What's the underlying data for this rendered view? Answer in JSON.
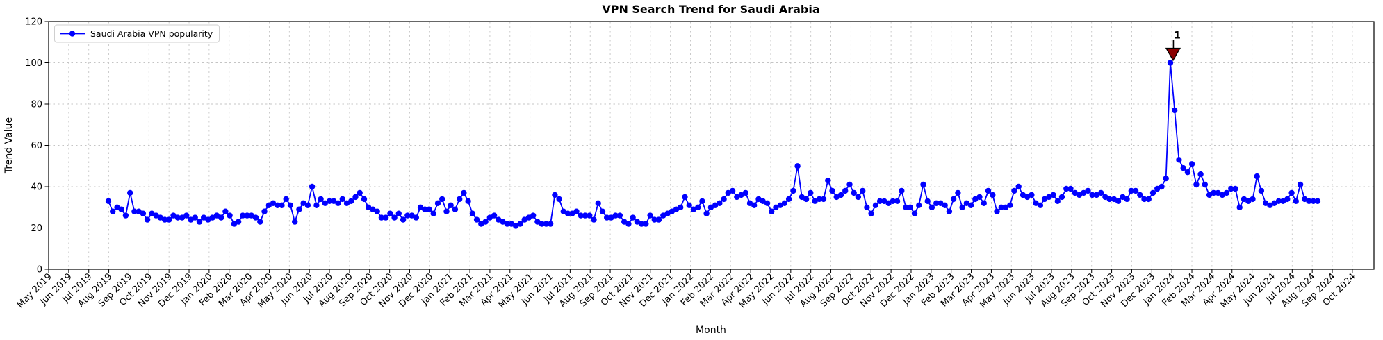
{
  "chart_data": {
    "type": "line",
    "title": "VPN Search Trend for Saudi Arabia",
    "xlabel": "Month",
    "ylabel": "Trend Value",
    "ylim": [
      0,
      120
    ],
    "yticks": [
      0,
      20,
      40,
      60,
      80,
      100,
      120
    ],
    "grid": true,
    "grid_style": "dashed-light-gray",
    "legend": {
      "position": "upper left",
      "entries": [
        "Saudi Arabia VPN popularity"
      ]
    },
    "x_tick_labels": [
      "May 2019",
      "Jun 2019",
      "Jul 2019",
      "Aug 2019",
      "Sep 2019",
      "Oct 2019",
      "Nov 2019",
      "Dec 2019",
      "Jan 2020",
      "Feb 2020",
      "Mar 2020",
      "Apr 2020",
      "May 2020",
      "Jun 2020",
      "Jul 2020",
      "Aug 2020",
      "Sep 2020",
      "Oct 2020",
      "Nov 2020",
      "Dec 2020",
      "Jan 2021",
      "Feb 2021",
      "Mar 2021",
      "Apr 2021",
      "May 2021",
      "Jun 2021",
      "Jul 2021",
      "Aug 2021",
      "Sep 2021",
      "Oct 2021",
      "Nov 2021",
      "Dec 2021",
      "Jan 2022",
      "Feb 2022",
      "Mar 2022",
      "Apr 2022",
      "May 2022",
      "Jun 2022",
      "Jul 2022",
      "Aug 2022",
      "Sep 2022",
      "Oct 2022",
      "Nov 2022",
      "Dec 2022",
      "Jan 2023",
      "Feb 2023",
      "Mar 2023",
      "Apr 2023",
      "May 2023",
      "Jun 2023",
      "Jul 2023",
      "Aug 2023",
      "Sep 2023",
      "Oct 2023",
      "Nov 2023",
      "Dec 2023",
      "Jan 2024",
      "Feb 2024",
      "Mar 2024",
      "Apr 2024",
      "May 2024",
      "Jun 2024",
      "Jul 2024",
      "Aug 2024",
      "Sep 2024",
      "Oct 2024"
    ],
    "series": [
      {
        "name": "Saudi Arabia VPN popularity",
        "color": "#0000FF",
        "marker": "circle",
        "cadence": "weekly (estimated from plot)",
        "first_point_month": "Aug 2019",
        "last_point_month": "Aug 2024",
        "values": [
          33,
          28,
          30,
          29,
          26,
          37,
          28,
          28,
          27,
          24,
          27,
          26,
          25,
          24,
          24,
          26,
          25,
          25,
          26,
          24,
          25,
          23,
          25,
          24,
          25,
          26,
          25,
          28,
          26,
          22,
          23,
          26,
          26,
          26,
          25,
          23,
          28,
          31,
          32,
          31,
          31,
          34,
          31,
          23,
          29,
          32,
          31,
          40,
          31,
          34,
          32,
          33,
          33,
          32,
          34,
          32,
          33,
          35,
          37,
          34,
          30,
          29,
          28,
          25,
          25,
          27,
          25,
          27,
          24,
          26,
          26,
          25,
          30,
          29,
          29,
          27,
          32,
          34,
          28,
          31,
          29,
          34,
          37,
          33,
          27,
          24,
          22,
          23,
          25,
          26,
          24,
          23,
          22,
          22,
          21,
          22,
          24,
          25,
          26,
          23,
          22,
          22,
          22,
          36,
          34,
          28,
          27,
          27,
          28,
          26,
          26,
          26,
          24,
          32,
          28,
          25,
          25,
          26,
          26,
          23,
          22,
          25,
          23,
          22,
          22,
          26,
          24,
          24,
          26,
          27,
          28,
          29,
          30,
          35,
          31,
          29,
          30,
          33,
          27,
          30,
          31,
          32,
          34,
          37,
          38,
          35,
          36,
          37,
          32,
          31,
          34,
          33,
          32,
          28,
          30,
          31,
          32,
          34,
          38,
          50,
          35,
          34,
          37,
          33,
          34,
          34,
          43,
          38,
          35,
          36,
          38,
          41,
          37,
          35,
          38,
          30,
          27,
          31,
          33,
          33,
          32,
          33,
          33,
          38,
          30,
          30,
          27,
          31,
          41,
          33,
          30,
          32,
          32,
          31,
          28,
          34,
          37,
          30,
          32,
          31,
          34,
          35,
          32,
          38,
          36,
          28,
          30,
          30,
          31,
          38,
          40,
          36,
          35,
          36,
          32,
          31,
          34,
          35,
          36,
          33,
          35,
          39,
          39,
          37,
          36,
          37,
          38,
          36,
          36,
          37,
          35,
          34,
          34,
          33,
          35,
          34,
          38,
          38,
          36,
          34,
          34,
          37,
          39,
          40,
          44,
          100,
          77,
          53,
          49,
          47,
          51,
          41,
          46,
          41,
          36,
          37,
          37,
          36,
          37,
          39,
          39,
          30,
          34,
          33,
          34,
          45,
          38,
          32,
          31,
          32,
          33,
          33,
          34,
          37,
          33,
          41,
          34,
          33,
          33,
          33
        ]
      }
    ],
    "annotation": {
      "label": "1",
      "value": 100,
      "month": "Jan 2024",
      "marker": "triangle-down",
      "marker_fill": "#8B0000",
      "marker_edge": "#000000",
      "text_color": "#8B0000"
    },
    "colors": {
      "line": "#0000FF",
      "grid": "#c4c4c4",
      "spine": "#000000",
      "background": "#ffffff",
      "annotation": "#8B0000"
    }
  }
}
